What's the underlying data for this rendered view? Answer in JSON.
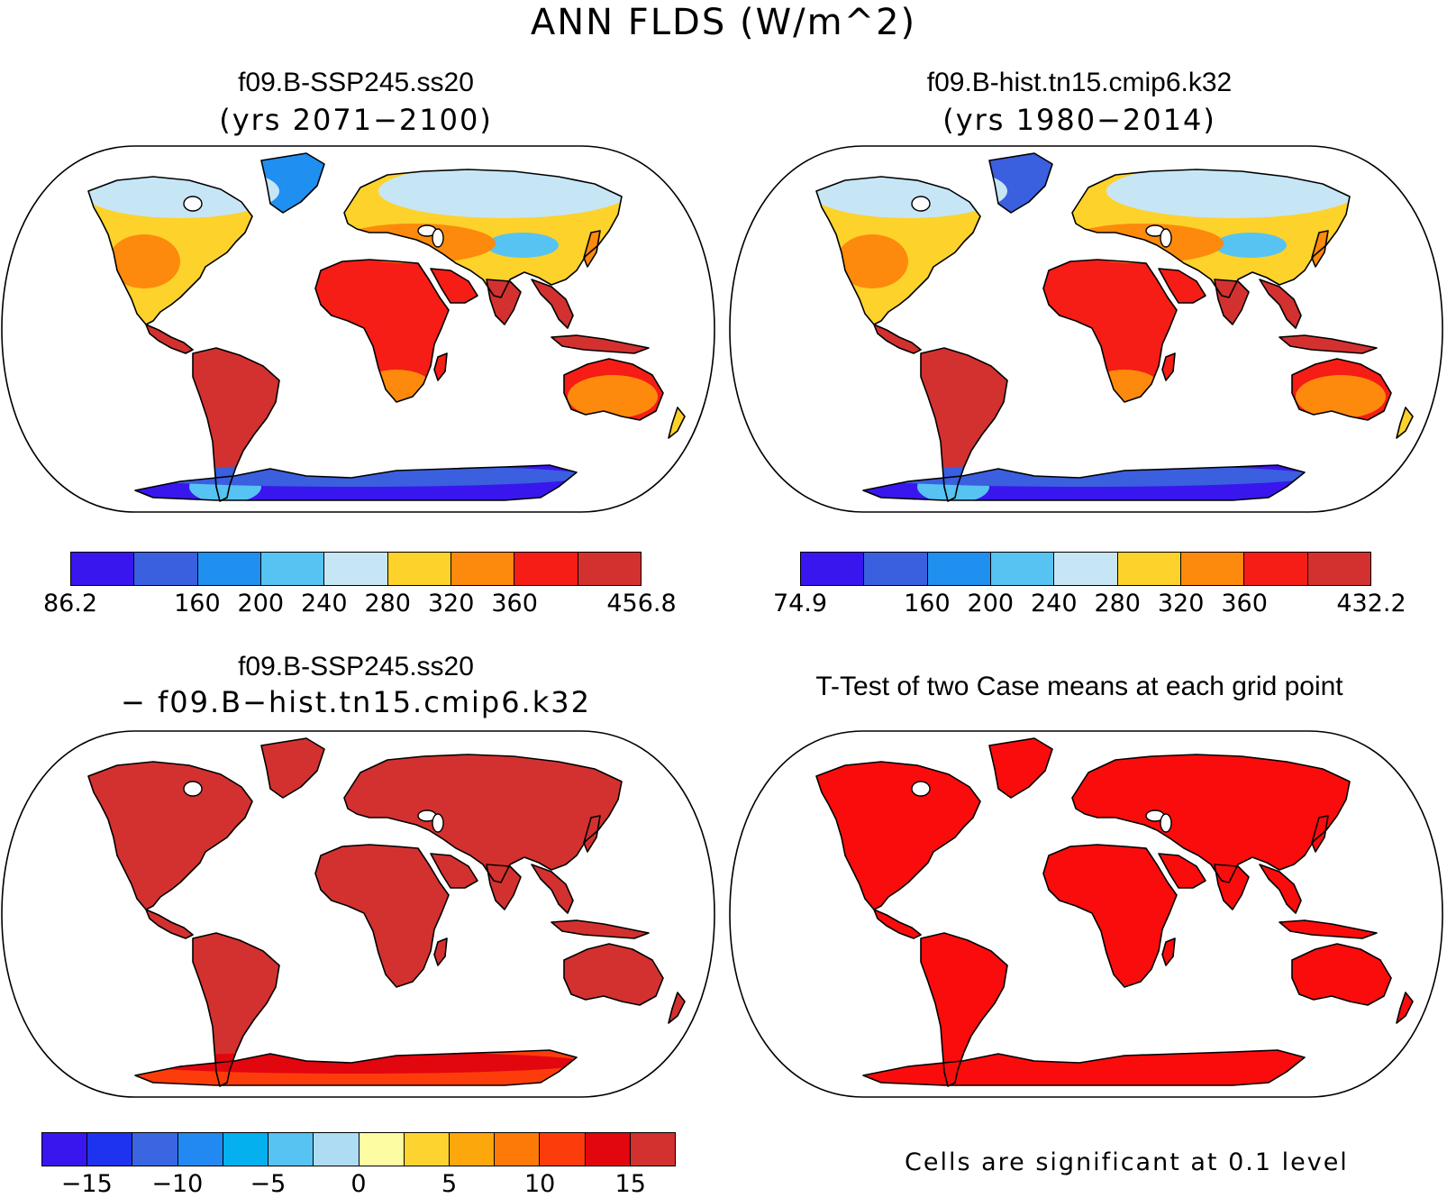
{
  "main_title": "ANN FLDS (W/m^2)",
  "panels": {
    "tl": {
      "title": "f09.B-SSP245.ss20",
      "subtitle": "(yrs 2071−2100)"
    },
    "tr": {
      "title": "f09.B-hist.tn15.cmip6.k32",
      "subtitle": "(yrs 1980−2014)"
    },
    "bl": {
      "title": "f09.B-SSP245.ss20",
      "subtitle": "− f09.B−hist.tn15.cmip6.k32"
    },
    "br": {
      "title": "T-Test of two Case means at each grid point",
      "note": "Cells are significant at 0.1 level"
    }
  },
  "colorbars": {
    "tl": {
      "colors": [
        "#3a16ee",
        "#3a5fdf",
        "#1f8ff0",
        "#56c3f2",
        "#c6e6f6",
        "#fdd22b",
        "#fd8a0c",
        "#f51d15",
        "#d3312f"
      ],
      "labels": [
        "86.2",
        "160",
        "200",
        "240",
        "280",
        "320",
        "360",
        "456.8"
      ]
    },
    "tr": {
      "colors": [
        "#3a16ee",
        "#3a5fdf",
        "#1f8ff0",
        "#56c3f2",
        "#c6e6f6",
        "#fdd22b",
        "#fd8a0c",
        "#f51d15",
        "#d3312f"
      ],
      "labels": [
        "74.9",
        "160",
        "200",
        "240",
        "280",
        "320",
        "360",
        "432.2"
      ]
    },
    "bl": {
      "colors": [
        "#3a16ee",
        "#1e33ef",
        "#3a66e2",
        "#2389f2",
        "#04b0ee",
        "#56c3f2",
        "#aedcf2",
        "#fefca3",
        "#fdd42f",
        "#fca70b",
        "#fd7a09",
        "#fd3c0b",
        "#e2060e",
        "#d3312f"
      ],
      "labels": [
        "−15",
        "−10",
        "−5",
        "0",
        "5",
        "10",
        "15"
      ]
    }
  },
  "map_colors": {
    "tl": {
      "north": "#c6e6f6",
      "greenland": "#1f8ff0",
      "mid": "#fdd22b",
      "warm": "#fd8a0c",
      "trop": "#d3312f",
      "trop2": "#f51d15",
      "antarctica": "#3a16ee",
      "antarctica_edge": "#3a5fdf",
      "highland": "#56c3f2"
    },
    "tr": {
      "north": "#c6e6f6",
      "greenland": "#3a5fdf",
      "mid": "#fdd22b",
      "warm": "#fd8a0c",
      "trop": "#d3312f",
      "trop2": "#f51d15",
      "antarctica": "#3a16ee",
      "antarctica_edge": "#3a5fdf",
      "highland": "#56c3f2"
    },
    "bl": {
      "land": "#d3312f",
      "antarctica": "#fd3c0b",
      "antarctica_edge": "#e2060e"
    },
    "br": {
      "land": "#fa0c0c",
      "antarctica": "#fa0c0c"
    }
  }
}
